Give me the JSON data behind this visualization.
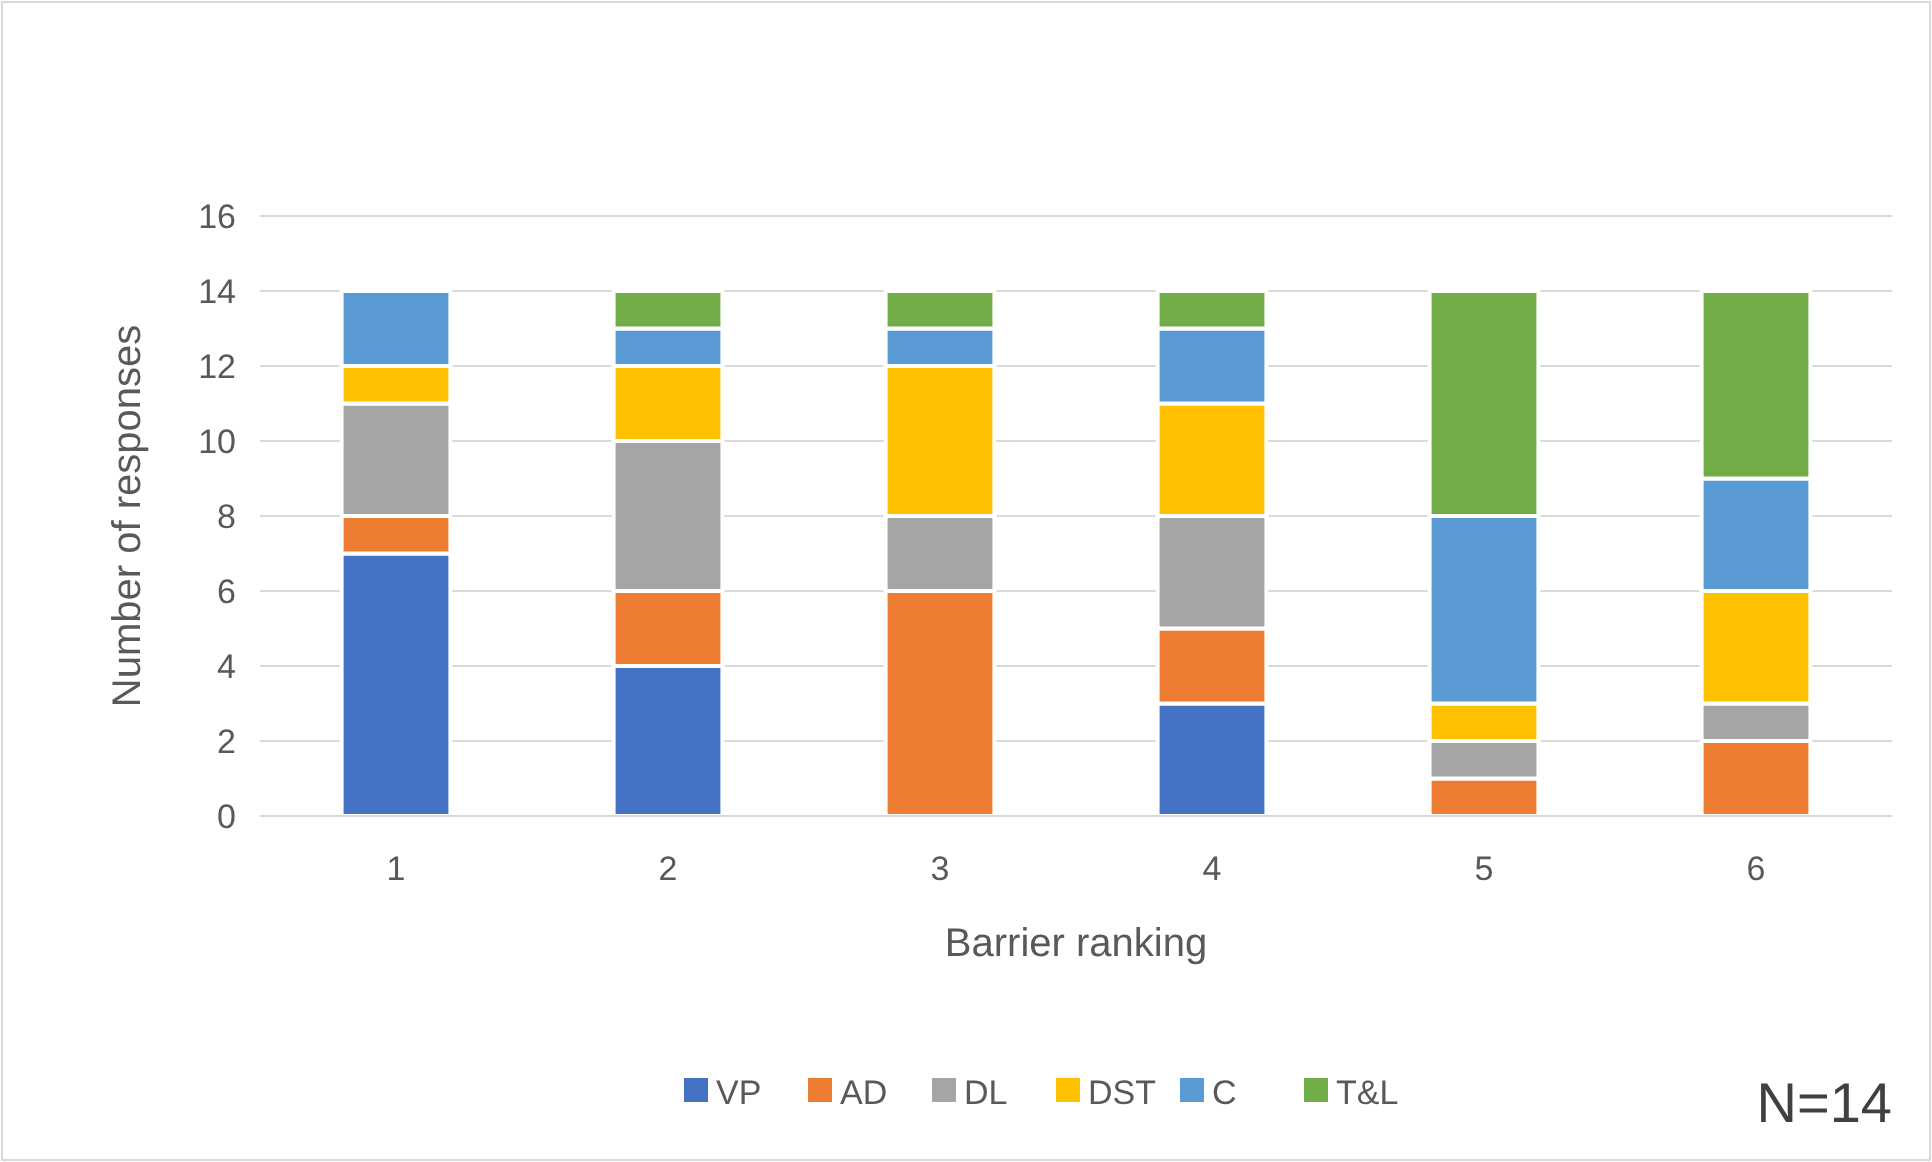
{
  "chart_data": {
    "type": "bar",
    "stacked": true,
    "xlabel": "Barrier ranking",
    "ylabel": "Number of responses",
    "categories": [
      "1",
      "2",
      "3",
      "4",
      "5",
      "6"
    ],
    "series": [
      {
        "name": "VP",
        "color": "#4472c4",
        "values": [
          7,
          4,
          0,
          3,
          0,
          0
        ]
      },
      {
        "name": "AD",
        "color": "#ed7d31",
        "values": [
          1,
          2,
          6,
          2,
          1,
          2
        ]
      },
      {
        "name": "DL",
        "color": "#a5a5a5",
        "values": [
          3,
          4,
          2,
          3,
          1,
          1
        ]
      },
      {
        "name": "DST",
        "color": "#ffc000",
        "values": [
          1,
          2,
          4,
          3,
          1,
          3
        ]
      },
      {
        "name": "C",
        "color": "#5b9bd5",
        "values": [
          2,
          1,
          1,
          2,
          5,
          3
        ]
      },
      {
        "name": "T&L",
        "color": "#70ad47",
        "values": [
          0,
          1,
          1,
          1,
          6,
          5
        ]
      }
    ],
    "ylim": [
      0,
      16
    ],
    "yticks": [
      0,
      2,
      4,
      6,
      8,
      10,
      12,
      14,
      16
    ],
    "grid": "y",
    "legend": "bottom",
    "annotations": [
      "N=14"
    ]
  }
}
